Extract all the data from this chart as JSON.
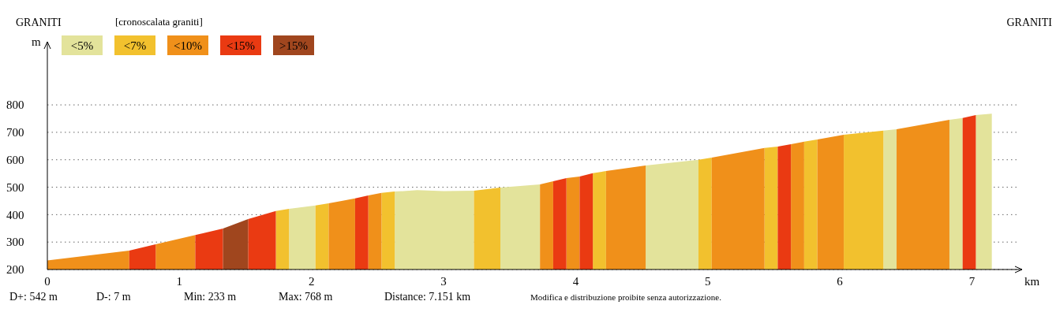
{
  "chart_data": {
    "type": "area",
    "subtitle": "[cronoscalata graniti]",
    "xlabel": "km",
    "ylabel": "m",
    "annotations": [
      "GRANITI",
      "GRANITI",
      "D+: 542 m",
      "D-: 7 m",
      "Min: 233 m",
      "Max: 768 m",
      "Distance: 7.151 km",
      "Modifica e distribuzione proibite senza autorizzazione."
    ],
    "xlim": [
      0,
      7.38
    ],
    "xticks": [
      0,
      1,
      2,
      3,
      4,
      5,
      6,
      7
    ],
    "ylim": [
      200,
      1030
    ],
    "yticks": [
      200,
      300,
      400,
      500,
      600,
      700,
      800
    ],
    "grid": "y",
    "legend": "top left",
    "series": [
      {
        "name": "<5%",
        "color": "#e3e39b",
        "x": [
          1.83,
          2.03,
          null,
          2.63,
          2.8,
          3.0,
          3.23,
          null,
          3.43,
          3.73,
          null,
          4.53,
          4.93,
          null,
          6.33,
          6.43,
          null,
          6.83,
          6.93,
          null,
          7.03,
          7.151
        ],
        "values": [
          421,
          433,
          null,
          484,
          489,
          486,
          487,
          null,
          499,
          510,
          null,
          579,
          600,
          null,
          706,
          711,
          null,
          746,
          752,
          null,
          763,
          768
        ]
      },
      {
        "name": "<7%",
        "color": "#f2c12e",
        "x": [
          1.73,
          1.83,
          null,
          2.03,
          2.13,
          null,
          2.53,
          2.63,
          null,
          3.23,
          3.43,
          null,
          4.13,
          4.23,
          null,
          4.93,
          5.03,
          null,
          5.43,
          5.53,
          null,
          5.73,
          5.83,
          null,
          6.03,
          6.33
        ],
        "values": [
          413,
          421,
          null,
          433,
          441,
          null,
          479,
          484,
          null,
          487,
          499,
          null,
          551,
          559,
          null,
          600,
          608,
          null,
          643,
          648,
          null,
          666,
          674,
          null,
          691,
          706
        ]
      },
      {
        "name": "<10%",
        "color": "#f0901a",
        "x": [
          0,
          0.62,
          null,
          0.82,
          1.12,
          null,
          2.13,
          2.33,
          null,
          2.43,
          2.53,
          null,
          3.73,
          3.83,
          null,
          3.93,
          4.03,
          null,
          4.23,
          4.53,
          null,
          5.03,
          5.43,
          null,
          5.63,
          5.73,
          null,
          5.83,
          6.03,
          null,
          6.43,
          6.83
        ],
        "values": [
          233,
          269,
          null,
          292,
          326,
          null,
          441,
          459,
          null,
          470,
          479,
          null,
          510,
          522,
          null,
          533,
          539,
          null,
          559,
          579,
          null,
          608,
          643,
          null,
          657,
          666,
          null,
          674,
          691,
          null,
          711,
          746
        ]
      },
      {
        "name": "<15%",
        "color": "#ea3a12",
        "x": [
          0.62,
          0.82,
          null,
          1.12,
          1.33,
          null,
          1.52,
          1.73,
          null,
          2.33,
          2.43,
          null,
          3.83,
          3.93,
          null,
          4.03,
          4.13,
          null,
          5.53,
          5.63,
          null,
          6.93,
          7.03
        ],
        "values": [
          269,
          292,
          null,
          326,
          349,
          null,
          384,
          413,
          null,
          459,
          470,
          null,
          522,
          533,
          null,
          539,
          551,
          null,
          648,
          657,
          null,
          752,
          763
        ]
      },
      {
        "name": ">15%",
        "color": "#a0461e",
        "x": [
          1.33,
          1.52
        ],
        "values": [
          349,
          384
        ]
      }
    ]
  }
}
